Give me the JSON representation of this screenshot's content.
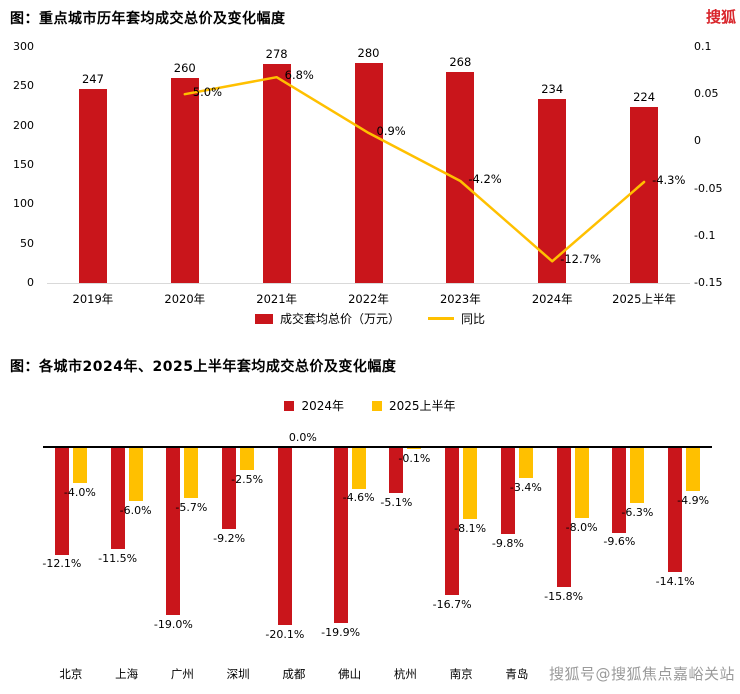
{
  "page": {
    "logo": "搜狐",
    "watermark": "搜狐号@搜狐焦点嘉峪关站"
  },
  "chart_data": [
    {
      "type": "bar",
      "subtype": "bar+line-combo",
      "title": "图：重点城市历年套均成交总价及变化幅度",
      "categories": [
        "2019年",
        "2020年",
        "2021年",
        "2022年",
        "2023年",
        "2024年",
        "2025上半年"
      ],
      "bar_series": {
        "name": "成交套均总价（万元）",
        "color": "#c9151b",
        "axis": "left",
        "values": [
          247,
          260,
          278,
          280,
          268,
          234,
          224
        ]
      },
      "line_series": {
        "name": "同比",
        "color": "#ffc000",
        "axis": "right",
        "values": [
          null,
          0.05,
          0.068,
          0.009,
          -0.042,
          -0.127,
          -0.043
        ],
        "point_labels": [
          "",
          "5.0%",
          "6.8%",
          "0.9%",
          "-4.2%",
          "-12.7%",
          "-4.3%"
        ]
      },
      "left_axis": {
        "min": 0,
        "max": 300,
        "ticks": [
          0,
          50,
          100,
          150,
          200,
          250,
          300
        ]
      },
      "right_axis": {
        "min": -0.15,
        "max": 0.1,
        "ticks": [
          0.1,
          0.05,
          0,
          -0.05,
          -0.1,
          -0.15
        ]
      },
      "legend_position": "bottom",
      "grid": false
    },
    {
      "type": "bar",
      "subtype": "grouped-vertical-negative",
      "title": "图：各城市2024年、2025上半年套均成交总价及变化幅度",
      "categories": [
        "北京",
        "上海",
        "广州",
        "深圳",
        "成都",
        "佛山",
        "杭州",
        "南京",
        "青岛",
        "",
        "",
        ""
      ],
      "series": [
        {
          "name": "2024年",
          "color": "#c9151b",
          "values": [
            -12.1,
            -11.5,
            -19.0,
            -9.2,
            -20.1,
            -19.9,
            -5.1,
            -16.7,
            -9.8,
            -15.8,
            -9.6,
            -14.1
          ]
        },
        {
          "name": "2025上半年",
          "color": "#ffc000",
          "values": [
            -4.0,
            -6.0,
            -5.7,
            -2.5,
            0.0,
            -4.6,
            -0.1,
            -8.1,
            -3.4,
            -8.0,
            -6.3,
            -4.9
          ]
        }
      ],
      "unit": "%",
      "ylim": [
        -22,
        0
      ],
      "legend_position": "top",
      "grid": false
    }
  ]
}
